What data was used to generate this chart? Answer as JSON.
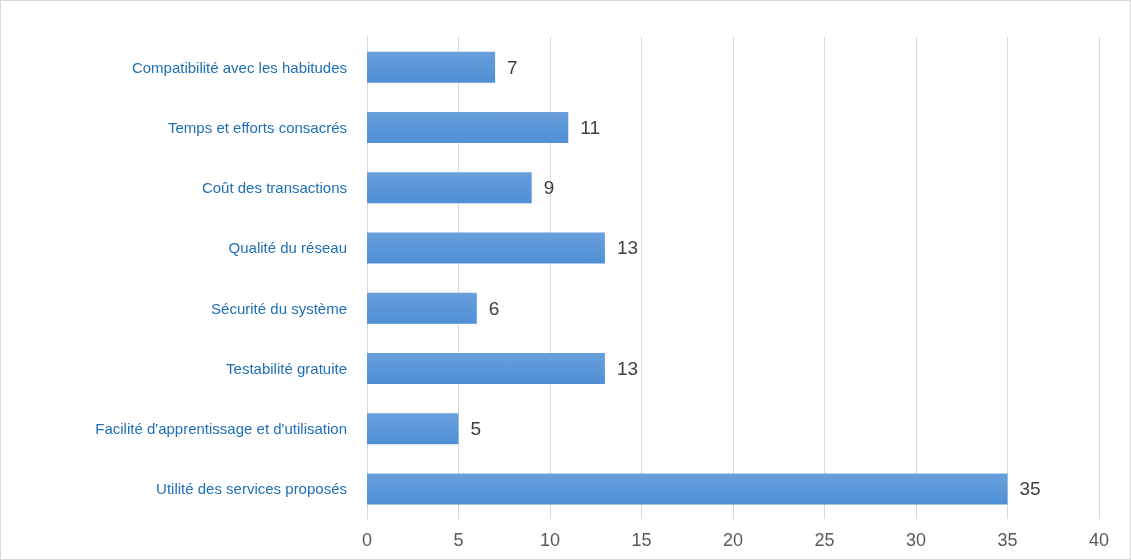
{
  "chart_data": {
    "type": "bar",
    "orientation": "horizontal",
    "categories": [
      "Compatibilité avec les habitudes",
      "Temps et efforts consacrés",
      "Coût des transactions",
      "Qualité du réseau",
      "Sécurité du système",
      "Testabilité gratuite",
      "Facilité d'apprentissage et d'utilisation",
      "Utilité des services proposés"
    ],
    "values": [
      7,
      11,
      9,
      13,
      6,
      13,
      5,
      35
    ],
    "color": "#4f8fd6",
    "xlim": [
      0,
      40
    ],
    "xticks": [
      0,
      5,
      10,
      15,
      20,
      25,
      30,
      35,
      40
    ],
    "grid": "x",
    "data_labels": true
  }
}
